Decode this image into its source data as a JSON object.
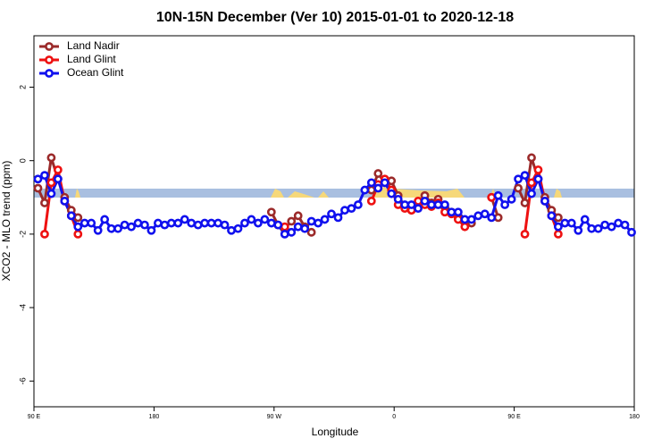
{
  "chart_data": {
    "type": "line",
    "title": "10N-15N December (Ver 10)   2015-01-01 to 2020-12-18",
    "x_label": "Longitude",
    "y_label": "XCO2 - MLO trend (ppm)",
    "x": [
      93,
      98,
      103,
      108,
      113,
      118,
      123,
      128,
      133,
      138,
      143,
      148,
      153,
      158,
      163,
      168,
      173,
      178,
      183,
      188,
      193,
      198,
      203,
      208,
      213,
      218,
      223,
      228,
      233,
      238,
      243,
      248,
      253,
      258,
      263,
      268,
      273,
      278,
      283,
      288,
      293,
      298,
      303,
      308,
      313,
      318,
      323,
      328,
      333,
      338,
      343,
      348,
      353,
      358,
      363,
      368,
      373,
      378,
      383,
      388,
      393,
      398,
      403,
      408,
      413,
      418,
      423,
      428,
      433,
      438,
      443,
      448,
      453,
      458,
      463,
      468,
      473,
      478,
      483,
      488,
      493,
      498,
      503,
      508,
      513,
      518,
      523,
      528,
      533,
      538
    ],
    "series": [
      {
        "name": "Land Nadir",
        "color": "#9b2a2a",
        "values": [
          -0.75,
          -1.15,
          0.08,
          -0.5,
          -1.0,
          -1.35,
          -1.55,
          null,
          null,
          null,
          null,
          null,
          null,
          null,
          null,
          null,
          null,
          null,
          null,
          null,
          null,
          null,
          null,
          null,
          null,
          null,
          null,
          null,
          null,
          null,
          null,
          null,
          null,
          null,
          null,
          -1.4,
          -1.75,
          -1.85,
          -1.65,
          -1.5,
          -1.8,
          -1.95,
          null,
          null,
          null,
          null,
          null,
          null,
          null,
          null,
          -0.8,
          -0.35,
          -0.6,
          -0.55,
          -0.95,
          -1.25,
          -1.35,
          -1.2,
          -0.95,
          -1.15,
          -1.05,
          -1.25,
          -1.4,
          -1.55,
          -1.65,
          -1.7,
          null,
          null,
          -1.0,
          -1.55,
          null,
          null,
          -0.75,
          -1.15,
          0.08,
          -0.5,
          -1.0,
          -1.35,
          -1.55,
          null,
          null,
          null,
          null,
          null,
          null,
          null,
          null,
          null,
          null,
          null
        ]
      },
      {
        "name": "Land Glint",
        "color": "#ee1111",
        "values": [
          null,
          -2.0,
          -0.6,
          -0.25,
          -1.1,
          -1.5,
          -2.0,
          null,
          null,
          null,
          null,
          null,
          null,
          null,
          null,
          null,
          null,
          null,
          null,
          null,
          null,
          null,
          null,
          null,
          null,
          null,
          null,
          null,
          null,
          null,
          null,
          null,
          null,
          null,
          null,
          null,
          null,
          -1.8,
          null,
          null,
          null,
          null,
          null,
          null,
          null,
          null,
          null,
          null,
          null,
          null,
          -1.1,
          -0.65,
          -0.5,
          -0.8,
          -1.2,
          -1.3,
          -1.35,
          -1.1,
          -1.2,
          -1.25,
          -1.15,
          -1.4,
          -1.45,
          -1.6,
          -1.8,
          null,
          null,
          null,
          -1.0,
          null,
          null,
          null,
          null,
          -2.0,
          -0.6,
          -0.25,
          -1.1,
          -1.5,
          -2.0,
          null,
          null,
          null,
          null,
          null,
          null,
          null,
          null,
          null,
          null,
          null
        ]
      },
      {
        "name": "Ocean Glint",
        "color": "#1010ee",
        "values": [
          -0.5,
          -0.4,
          -0.9,
          -0.5,
          -1.1,
          -1.5,
          -1.8,
          -1.7,
          -1.7,
          -1.9,
          -1.6,
          -1.85,
          -1.85,
          -1.75,
          -1.8,
          -1.7,
          -1.75,
          -1.9,
          -1.7,
          -1.75,
          -1.7,
          -1.7,
          -1.6,
          -1.7,
          -1.75,
          -1.7,
          -1.7,
          -1.7,
          -1.75,
          -1.9,
          -1.85,
          -1.7,
          -1.6,
          -1.7,
          -1.6,
          -1.7,
          -1.75,
          -2.0,
          -1.95,
          -1.8,
          -1.85,
          -1.65,
          -1.7,
          -1.6,
          -1.45,
          -1.55,
          -1.35,
          -1.3,
          -1.2,
          -0.8,
          -0.6,
          -0.75,
          -0.6,
          -0.9,
          -1.05,
          -1.2,
          -1.2,
          -1.3,
          -1.1,
          -1.2,
          -1.2,
          -1.2,
          -1.4,
          -1.4,
          -1.6,
          -1.6,
          -1.5,
          -1.45,
          -1.55,
          -0.95,
          -1.2,
          -1.05,
          -0.5,
          -0.4,
          -0.9,
          -0.5,
          -1.1,
          -1.5,
          -1.8,
          -1.7,
          -1.7,
          -1.9,
          -1.6,
          -1.85,
          -1.85,
          -1.75,
          -1.8,
          -1.7,
          -1.75,
          -1.95
        ]
      }
    ],
    "xlim": [
      90,
      540
    ],
    "xticks": [
      {
        "value": 90,
        "label": "90 E"
      },
      {
        "value": 180,
        "label": "180"
      },
      {
        "value": 270,
        "label": "90 W"
      },
      {
        "value": 360,
        "label": "0"
      },
      {
        "value": 450,
        "label": "90 E"
      },
      {
        "value": 540,
        "label": "180"
      }
    ],
    "ylim": [
      -6.7,
      3.4
    ],
    "yticks": [
      -6,
      -4,
      -2,
      0,
      2
    ],
    "grid": false,
    "legend": "top-left"
  }
}
